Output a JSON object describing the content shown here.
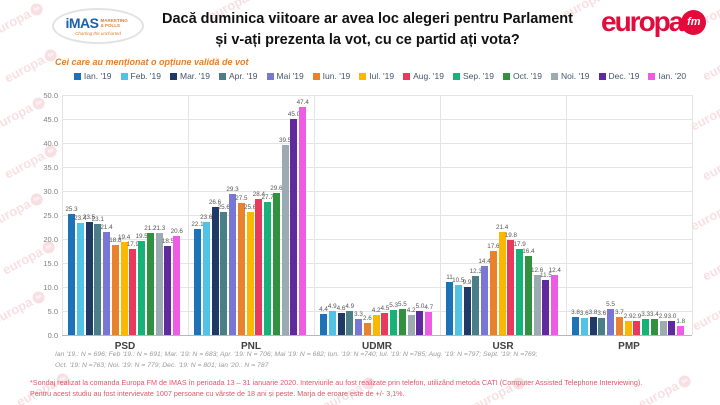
{
  "header": {
    "title_line1": "Dacă duminica viitoare ar avea loc alegeri pentru Parlament",
    "title_line2": "și v-ați prezenta la vot, cu ce partid ați vota?",
    "imas": {
      "name": "iMAS",
      "sub": "MARKETING & POLLS",
      "tagline": "Charting the uncharted"
    },
    "europafm": {
      "name": "europa",
      "fm": "fm"
    }
  },
  "subtitle": "Cei care au menționat o opțiune validă de vot",
  "watermark": "europa fm",
  "chart_data": {
    "type": "bar",
    "title": "Dacă duminica viitoare ar avea loc alegeri pentru Parlament și v-ați prezenta la vot, cu ce partid ați vota?",
    "categories": [
      "PSD",
      "PNL",
      "UDMR",
      "USR",
      "PMP"
    ],
    "series": [
      {
        "name": "Ian. '19",
        "color": "#1e73b8",
        "values": [
          25.3,
          22.1,
          4.4,
          11,
          3.8
        ],
        "labels": [
          "25.3",
          "22.1",
          "4.4",
          "11",
          "3.8"
        ]
      },
      {
        "name": "Feb. '19",
        "color": "#52c2e6",
        "values": [
          23.4,
          23.6,
          4.9,
          10.5,
          3.6
        ],
        "labels": [
          "23.4",
          "23.6",
          "4.9",
          "10.5",
          "3.6"
        ]
      },
      {
        "name": "Mar. '19",
        "color": "#1f3a67",
        "values": [
          23.5,
          26.6,
          4.6,
          9.9,
          3.8
        ],
        "labels": [
          "23.5",
          "26.6",
          "4.6",
          "9.9",
          "3.8"
        ]
      },
      {
        "name": "Apr. '19",
        "color": "#4a7f87",
        "values": [
          23.1,
          25.6,
          4.9,
          12.3,
          3.6
        ],
        "labels": [
          "23.1",
          "25.6",
          "4.9",
          "12.3",
          "3.6"
        ]
      },
      {
        "name": "Mai '19",
        "color": "#7877d3",
        "values": [
          21.4,
          29.3,
          3.3,
          14.4,
          5.5
        ],
        "labels": [
          "21.4",
          "29.3",
          "3.3",
          "14.4",
          "5.5"
        ]
      },
      {
        "name": "Iun. '19",
        "color": "#e8822c",
        "values": [
          18.8,
          27.5,
          2.6,
          17.6,
          3.7
        ],
        "labels": [
          "18.8",
          "27.5",
          "2.6",
          "17.6",
          "3.7"
        ]
      },
      {
        "name": "Iul. '19",
        "color": "#fbb800",
        "values": [
          19.4,
          25.6,
          4.2,
          21.4,
          2.9
        ],
        "labels": [
          "19.4",
          "25.6",
          "4.2",
          "21.4",
          "2.9"
        ]
      },
      {
        "name": "Aug. '19",
        "color": "#e93a5c",
        "values": [
          17.9,
          28.4,
          4.5,
          19.8,
          2.9
        ],
        "labels": [
          "17.9",
          "28.4",
          "4.5",
          "19.8",
          "2.9"
        ]
      },
      {
        "name": "Sep. '19",
        "color": "#16b277",
        "values": [
          19.5,
          27.7,
          5.3,
          17.9,
          3.3
        ],
        "labels": [
          "19.5",
          "27.7",
          "5.3",
          "17.9",
          "3.3"
        ]
      },
      {
        "name": "Oct. '19",
        "color": "#32913e",
        "values": [
          21.2,
          29.6,
          5.5,
          16.4,
          3.4
        ],
        "labels": [
          "21.2",
          "29.6",
          "5.5",
          "16.4",
          "3.4"
        ]
      },
      {
        "name": "Noi. '19",
        "color": "#9caab2",
        "values": [
          21.3,
          39.5,
          4.2,
          12.6,
          2.9
        ],
        "labels": [
          "21.3",
          "39.5",
          "4.2",
          "12.6",
          "2.9"
        ]
      },
      {
        "name": "Dec. '19",
        "color": "#5e2a9d",
        "values": [
          18.5,
          45.0,
          5.0,
          11.5,
          3.0
        ],
        "labels": [
          "18.5",
          "45.0",
          "5.0",
          "11.5",
          "3.0"
        ]
      },
      {
        "name": "Ian. '20",
        "color": "#ee5ce4",
        "values": [
          20.6,
          47.4,
          4.7,
          12.4,
          1.8
        ],
        "labels": [
          "20.6",
          "47.4",
          "4.7",
          "12.4",
          "1.8"
        ]
      }
    ],
    "xlabel": "",
    "ylabel": "",
    "ylim": [
      0,
      50
    ],
    "yticks": [
      0,
      5,
      10,
      15,
      20,
      25,
      30,
      35,
      40,
      45,
      50
    ],
    "ytick_labels": [
      "0.0",
      "5.0",
      "10.0",
      "15.0",
      "20.0",
      "25.0",
      "30.0",
      "35.0",
      "40.0",
      "45.0",
      "50.0"
    ],
    "grid": true,
    "legend_position": "top"
  },
  "footnotes": {
    "samples_line1": "Ian '19.: N = 696; Feb '19.: N = 691; Mar. '19: N = 683; Apr. '19: N = 706; Mai '19: N = 682; Iun. '19: N =740; Iul. '19: N =785; Aug. '19: N =797; Sept. '19: N =769;",
    "samples_line2": "Oct. '19: N =763; Noi. '19: N = 779; Dec. '19: N = 801; Ian '20.: N = 787",
    "red_line1": "*Sondaj realizat la comanda Europa FM de IMAS în perioada 13 – 31 ianuarie 2020. Interviurile au fost realizate prin telefon, utilizând metoda CATI (Computer Assisted Telephone Interviewing).",
    "red_line2": "Pentru acest studiu au fost intervievate 1007 persoane cu vârste de 18 ani și peste. Marja de eroare este de +/- 3,1%."
  }
}
